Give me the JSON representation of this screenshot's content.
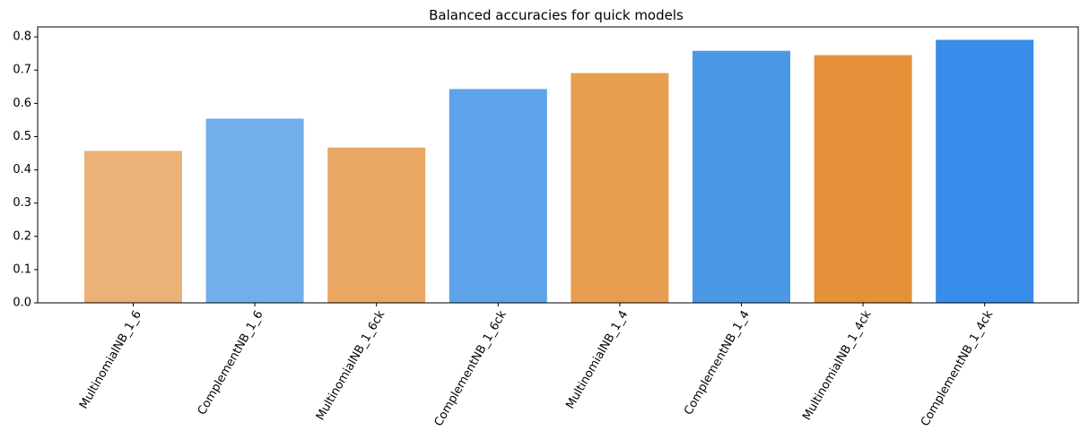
{
  "chart_data": {
    "type": "bar",
    "title": "Balanced accuracies for quick models",
    "xlabel": "",
    "ylabel": "",
    "categories": [
      "MultinomialNB_1_6",
      "ComplementNB_1_6",
      "MultinomialNB_1_6ck",
      "ComplementNB_1_6ck",
      "MultinomialNB_1_4",
      "ComplementNB_1_4",
      "MultinomialNB_1_4ck",
      "ComplementNB_1_4ck"
    ],
    "values": [
      0.457,
      0.554,
      0.467,
      0.643,
      0.691,
      0.758,
      0.745,
      0.791
    ],
    "colors": [
      "#ebb176",
      "#72adec",
      "#eaa764",
      "#5ea3e9",
      "#e89e51",
      "#4b98e6",
      "#e5913a",
      "#388cea"
    ],
    "ylim": [
      0,
      0.83
    ],
    "yticks": [
      "0.0",
      "0.1",
      "0.2",
      "0.3",
      "0.4",
      "0.5",
      "0.6",
      "0.7",
      "0.8"
    ],
    "ytick_values": [
      0,
      0.1,
      0.2,
      0.3,
      0.4,
      0.5,
      0.6,
      0.7,
      0.8
    ],
    "xtick_rotation_deg": -60,
    "grid": false,
    "legend": "none"
  }
}
